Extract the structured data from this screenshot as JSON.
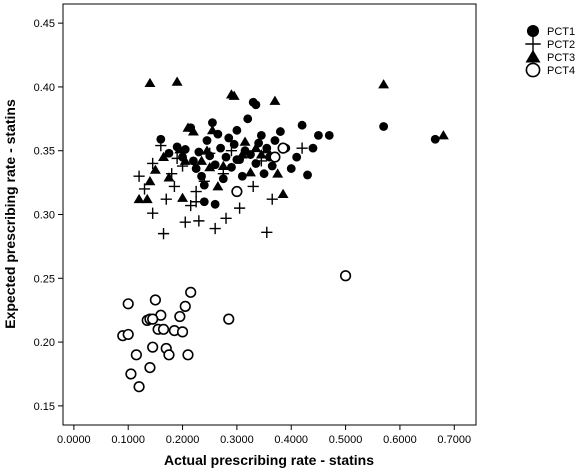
{
  "chart_data": {
    "type": "scatter",
    "xlabel": "Actual prescribing rate - statins",
    "ylabel": "Expected prescribing rate - statins",
    "xlim": [
      -0.02,
      0.74
    ],
    "ylim": [
      0.135,
      0.465
    ],
    "x_ticks": [
      "0.0000",
      "0.1000",
      "0.2000",
      "0.3000",
      "0.4000",
      "0.5000",
      "0.6000",
      "0.7000"
    ],
    "y_ticks": [
      "0.15",
      "0.20",
      "0.25",
      "0.30",
      "0.35",
      "0.40",
      "0.45"
    ],
    "grid": false,
    "legend_position": "top-right, outside plot",
    "series": [
      {
        "name": "PCT1",
        "marker": "filled-circle",
        "points": [
          [
            0.16,
            0.359
          ],
          [
            0.175,
            0.348
          ],
          [
            0.19,
            0.353
          ],
          [
            0.2,
            0.345
          ],
          [
            0.205,
            0.351
          ],
          [
            0.215,
            0.368
          ],
          [
            0.22,
            0.342
          ],
          [
            0.225,
            0.336
          ],
          [
            0.23,
            0.349
          ],
          [
            0.235,
            0.33
          ],
          [
            0.24,
            0.323
          ],
          [
            0.245,
            0.358
          ],
          [
            0.25,
            0.346
          ],
          [
            0.255,
            0.372
          ],
          [
            0.26,
            0.339
          ],
          [
            0.265,
            0.363
          ],
          [
            0.27,
            0.352
          ],
          [
            0.275,
            0.328
          ],
          [
            0.28,
            0.345
          ],
          [
            0.285,
            0.36
          ],
          [
            0.29,
            0.337
          ],
          [
            0.295,
            0.355
          ],
          [
            0.3,
            0.366
          ],
          [
            0.305,
            0.343
          ],
          [
            0.31,
            0.33
          ],
          [
            0.315,
            0.35
          ],
          [
            0.32,
            0.375
          ],
          [
            0.325,
            0.347
          ],
          [
            0.33,
            0.388
          ],
          [
            0.335,
            0.34
          ],
          [
            0.34,
            0.356
          ],
          [
            0.345,
            0.362
          ],
          [
            0.35,
            0.332
          ],
          [
            0.355,
            0.352
          ],
          [
            0.36,
            0.345
          ],
          [
            0.365,
            0.338
          ],
          [
            0.37,
            0.358
          ],
          [
            0.38,
            0.365
          ],
          [
            0.39,
            0.352
          ],
          [
            0.4,
            0.336
          ],
          [
            0.41,
            0.345
          ],
          [
            0.42,
            0.37
          ],
          [
            0.43,
            0.331
          ],
          [
            0.44,
            0.352
          ],
          [
            0.45,
            0.362
          ],
          [
            0.47,
            0.362
          ],
          [
            0.24,
            0.31
          ],
          [
            0.26,
            0.308
          ],
          [
            0.3,
            0.343
          ],
          [
            0.335,
            0.386
          ],
          [
            0.57,
            0.369
          ],
          [
            0.665,
            0.359
          ]
        ]
      },
      {
        "name": "PCT2",
        "marker": "plus",
        "points": [
          [
            0.12,
            0.33
          ],
          [
            0.13,
            0.32
          ],
          [
            0.145,
            0.301
          ],
          [
            0.16,
            0.354
          ],
          [
            0.165,
            0.285
          ],
          [
            0.17,
            0.312
          ],
          [
            0.18,
            0.332
          ],
          [
            0.185,
            0.322
          ],
          [
            0.19,
            0.344
          ],
          [
            0.2,
            0.338
          ],
          [
            0.205,
            0.294
          ],
          [
            0.215,
            0.307
          ],
          [
            0.225,
            0.31
          ],
          [
            0.23,
            0.295
          ],
          [
            0.24,
            0.326
          ],
          [
            0.25,
            0.348
          ],
          [
            0.26,
            0.289
          ],
          [
            0.275,
            0.332
          ],
          [
            0.28,
            0.297
          ],
          [
            0.29,
            0.35
          ],
          [
            0.305,
            0.305
          ],
          [
            0.33,
            0.322
          ],
          [
            0.345,
            0.342
          ],
          [
            0.355,
            0.286
          ],
          [
            0.365,
            0.312
          ],
          [
            0.42,
            0.352
          ],
          [
            0.145,
            0.34
          ],
          [
            0.225,
            0.318
          ]
        ]
      },
      {
        "name": "PCT3",
        "marker": "filled-triangle",
        "points": [
          [
            0.12,
            0.312
          ],
          [
            0.135,
            0.312
          ],
          [
            0.14,
            0.326
          ],
          [
            0.15,
            0.335
          ],
          [
            0.165,
            0.345
          ],
          [
            0.175,
            0.329
          ],
          [
            0.195,
            0.351
          ],
          [
            0.2,
            0.313
          ],
          [
            0.205,
            0.342
          ],
          [
            0.21,
            0.368
          ],
          [
            0.22,
            0.365
          ],
          [
            0.235,
            0.342
          ],
          [
            0.245,
            0.35
          ],
          [
            0.25,
            0.337
          ],
          [
            0.255,
            0.366
          ],
          [
            0.265,
            0.322
          ],
          [
            0.275,
            0.338
          ],
          [
            0.29,
            0.394
          ],
          [
            0.295,
            0.393
          ],
          [
            0.31,
            0.347
          ],
          [
            0.315,
            0.357
          ],
          [
            0.325,
            0.333
          ],
          [
            0.335,
            0.352
          ],
          [
            0.345,
            0.347
          ],
          [
            0.355,
            0.351
          ],
          [
            0.37,
            0.389
          ],
          [
            0.375,
            0.332
          ],
          [
            0.385,
            0.316
          ],
          [
            0.14,
            0.403
          ],
          [
            0.19,
            0.404
          ],
          [
            0.57,
            0.402
          ],
          [
            0.68,
            0.362
          ]
        ]
      },
      {
        "name": "PCT4",
        "marker": "open-circle",
        "points": [
          [
            0.09,
            0.205
          ],
          [
            0.1,
            0.23
          ],
          [
            0.105,
            0.175
          ],
          [
            0.115,
            0.19
          ],
          [
            0.12,
            0.165
          ],
          [
            0.135,
            0.217
          ],
          [
            0.14,
            0.218
          ],
          [
            0.145,
            0.196
          ],
          [
            0.15,
            0.233
          ],
          [
            0.155,
            0.21
          ],
          [
            0.16,
            0.221
          ],
          [
            0.165,
            0.21
          ],
          [
            0.17,
            0.195
          ],
          [
            0.175,
            0.19
          ],
          [
            0.185,
            0.209
          ],
          [
            0.195,
            0.22
          ],
          [
            0.2,
            0.208
          ],
          [
            0.205,
            0.228
          ],
          [
            0.21,
            0.19
          ],
          [
            0.215,
            0.239
          ],
          [
            0.285,
            0.218
          ],
          [
            0.3,
            0.318
          ],
          [
            0.37,
            0.345
          ],
          [
            0.385,
            0.352
          ],
          [
            0.5,
            0.252
          ],
          [
            0.1,
            0.206
          ],
          [
            0.145,
            0.218
          ],
          [
            0.14,
            0.18
          ]
        ]
      }
    ]
  }
}
